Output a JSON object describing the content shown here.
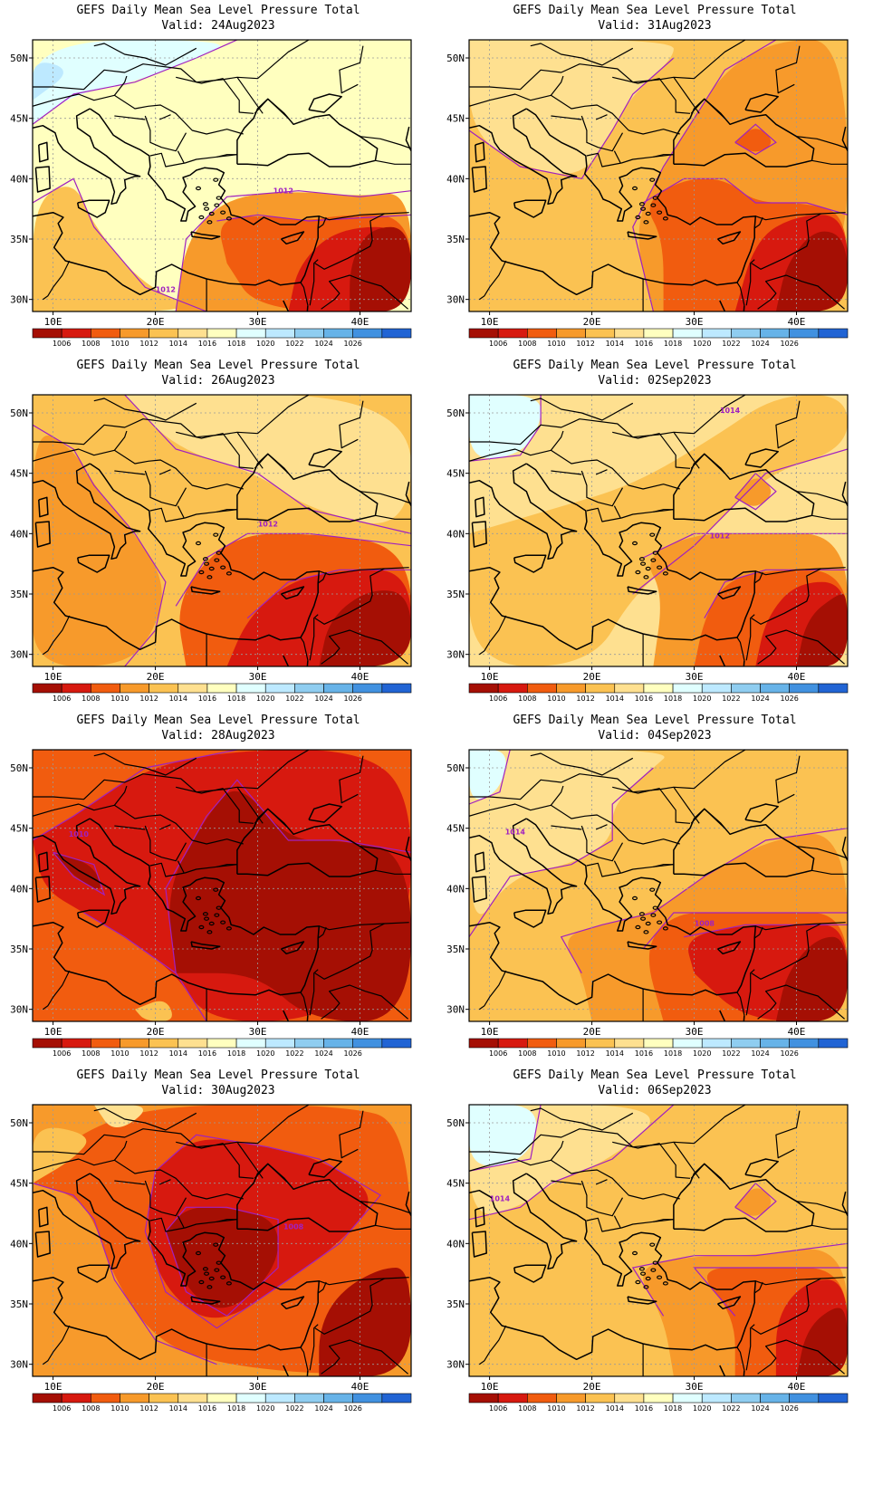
{
  "panels": [
    {
      "title": "GEFS Daily Mean Sea Level Pressure Total",
      "valid": "Valid: 24Aug2023",
      "contour_labels": [
        "1012",
        "1012"
      ]
    },
    {
      "title": "GEFS Daily Mean Sea Level Pressure Total",
      "valid": "Valid: 31Aug2023",
      "contour_labels": []
    },
    {
      "title": "GEFS Daily Mean Sea Level Pressure Total",
      "valid": "Valid: 26Aug2023",
      "contour_labels": [
        "1012"
      ]
    },
    {
      "title": "GEFS Daily Mean Sea Level Pressure Total",
      "valid": "Valid: 02Sep2023",
      "contour_labels": [
        "1014",
        "1012"
      ]
    },
    {
      "title": "GEFS Daily Mean Sea Level Pressure Total",
      "valid": "Valid: 28Aug2023",
      "contour_labels": [
        "1010"
      ]
    },
    {
      "title": "GEFS Daily Mean Sea Level Pressure Total",
      "valid": "Valid: 04Sep2023",
      "contour_labels": [
        "1014",
        "1008"
      ]
    },
    {
      "title": "GEFS Daily Mean Sea Level Pressure Total",
      "valid": "Valid: 30Aug2023",
      "contour_labels": [
        "1008"
      ]
    },
    {
      "title": "GEFS Daily Mean Sea Level Pressure Total",
      "valid": "Valid: 06Sep2023",
      "contour_labels": [
        "1014"
      ]
    }
  ],
  "axes": {
    "lat_ticks": [
      "50N",
      "45N",
      "40N",
      "35N",
      "30N"
    ],
    "lon_ticks": [
      "10E",
      "20E",
      "30E",
      "40E"
    ]
  },
  "colorbar": {
    "colors": [
      "#a50f04",
      "#d7190f",
      "#f15c0f",
      "#f79a2b",
      "#fbc252",
      "#fee090",
      "#ffffbf",
      "#e0ffff",
      "#bde9ff",
      "#8fcdf0",
      "#67b3e8",
      "#4191e0",
      "#2164d4"
    ],
    "labels": [
      "1006",
      "1008",
      "1010",
      "1012",
      "1014",
      "1016",
      "1018",
      "1020",
      "1022",
      "1024",
      "1026"
    ]
  },
  "colors": {
    "contour": "#a020c0",
    "coast": "#000000",
    "grid": "#9a9a9a"
  }
}
